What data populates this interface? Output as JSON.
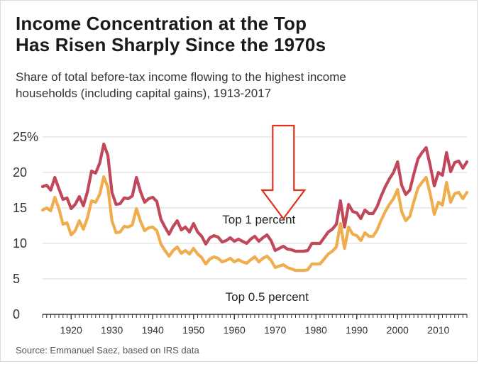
{
  "header": {
    "title_line1": "Income Concentration at the Top",
    "title_line2": "Has Risen Sharply Since the 1970s",
    "subtitle_line1": "Share of total before-tax income flowing to the highest income",
    "subtitle_line2": "households (including capital gains), 1913-2017"
  },
  "footer": {
    "source": "Source: Emmanuel Saez, based on IRS data"
  },
  "colors": {
    "top1": "#c0485a",
    "top05": "#f0ad4e",
    "arrow": "#e0301e",
    "grid": "#d9d9d9",
    "axis": "#333333"
  },
  "chart_data": {
    "type": "line",
    "title": "Income Concentration at the Top Has Risen Sharply Since the 1970s",
    "xlabel": "",
    "ylabel": "",
    "xlim": [
      1913,
      2017
    ],
    "ylim": [
      0,
      25
    ],
    "yticks": [
      0,
      5,
      10,
      15,
      20,
      25
    ],
    "ytick_labels": [
      "0",
      "5",
      "10",
      "15",
      "20",
      "25%"
    ],
    "xticks": [
      1920,
      1930,
      1940,
      1950,
      1960,
      1970,
      1980,
      1990,
      2000,
      2010
    ],
    "xtick_labels": [
      "1920",
      "1930",
      "1940",
      "1950",
      "1960",
      "1970",
      "1980",
      "1990",
      "2000",
      "2010"
    ],
    "grid": true,
    "annotation": "downward arrow above the curves near 1970-1974",
    "series": [
      {
        "name": "Top 1 percent",
        "label_text": "Top 1 percent",
        "label_year": 1966,
        "label_value": 12.8,
        "points": [
          [
            1913,
            18.0
          ],
          [
            1914,
            18.2
          ],
          [
            1915,
            17.5
          ],
          [
            1916,
            19.3
          ],
          [
            1917,
            17.7
          ],
          [
            1918,
            16.2
          ],
          [
            1919,
            16.4
          ],
          [
            1920,
            14.9
          ],
          [
            1921,
            15.5
          ],
          [
            1922,
            16.6
          ],
          [
            1923,
            15.3
          ],
          [
            1924,
            17.3
          ],
          [
            1925,
            20.2
          ],
          [
            1926,
            19.9
          ],
          [
            1927,
            21.3
          ],
          [
            1928,
            24.0
          ],
          [
            1929,
            22.4
          ],
          [
            1930,
            17.2
          ],
          [
            1931,
            15.5
          ],
          [
            1932,
            15.6
          ],
          [
            1933,
            16.4
          ],
          [
            1934,
            16.3
          ],
          [
            1935,
            16.7
          ],
          [
            1936,
            19.3
          ],
          [
            1937,
            17.3
          ],
          [
            1938,
            15.8
          ],
          [
            1939,
            16.3
          ],
          [
            1940,
            16.5
          ],
          [
            1941,
            15.9
          ],
          [
            1942,
            13.4
          ],
          [
            1943,
            12.3
          ],
          [
            1944,
            11.3
          ],
          [
            1945,
            12.4
          ],
          [
            1946,
            13.2
          ],
          [
            1947,
            11.9
          ],
          [
            1948,
            12.3
          ],
          [
            1949,
            11.6
          ],
          [
            1950,
            12.8
          ],
          [
            1951,
            11.6
          ],
          [
            1952,
            11.0
          ],
          [
            1953,
            9.9
          ],
          [
            1954,
            10.8
          ],
          [
            1955,
            11.1
          ],
          [
            1956,
            10.9
          ],
          [
            1957,
            10.2
          ],
          [
            1958,
            10.4
          ],
          [
            1959,
            10.8
          ],
          [
            1960,
            10.3
          ],
          [
            1961,
            10.6
          ],
          [
            1962,
            10.3
          ],
          [
            1963,
            10.0
          ],
          [
            1964,
            10.6
          ],
          [
            1965,
            11.0
          ],
          [
            1966,
            10.3
          ],
          [
            1967,
            10.8
          ],
          [
            1968,
            11.2
          ],
          [
            1969,
            10.4
          ],
          [
            1970,
            9.0
          ],
          [
            1971,
            9.3
          ],
          [
            1972,
            9.6
          ],
          [
            1973,
            9.2
          ],
          [
            1974,
            9.1
          ],
          [
            1975,
            8.9
          ],
          [
            1976,
            8.9
          ],
          [
            1977,
            8.9
          ],
          [
            1978,
            9.0
          ],
          [
            1979,
            10.0
          ],
          [
            1980,
            10.0
          ],
          [
            1981,
            10.0
          ],
          [
            1982,
            10.8
          ],
          [
            1983,
            11.6
          ],
          [
            1984,
            12.0
          ],
          [
            1985,
            12.7
          ],
          [
            1986,
            16.0
          ],
          [
            1987,
            12.3
          ],
          [
            1988,
            15.5
          ],
          [
            1989,
            14.5
          ],
          [
            1990,
            14.3
          ],
          [
            1991,
            13.5
          ],
          [
            1992,
            14.7
          ],
          [
            1993,
            14.2
          ],
          [
            1994,
            14.2
          ],
          [
            1995,
            15.2
          ],
          [
            1996,
            16.7
          ],
          [
            1997,
            18.0
          ],
          [
            1998,
            19.1
          ],
          [
            1999,
            20.0
          ],
          [
            2000,
            21.5
          ],
          [
            2001,
            18.2
          ],
          [
            2002,
            16.9
          ],
          [
            2003,
            17.5
          ],
          [
            2004,
            19.8
          ],
          [
            2005,
            21.9
          ],
          [
            2006,
            22.8
          ],
          [
            2007,
            23.5
          ],
          [
            2008,
            21.0
          ],
          [
            2009,
            18.1
          ],
          [
            2010,
            20.0
          ],
          [
            2011,
            19.6
          ],
          [
            2012,
            22.8
          ],
          [
            2013,
            20.1
          ],
          [
            2014,
            21.4
          ],
          [
            2015,
            21.6
          ],
          [
            2016,
            20.6
          ],
          [
            2017,
            21.5
          ]
        ]
      },
      {
        "name": "Top 0.5 percent",
        "label_text": "Top 0.5 percent",
        "label_year": 1968,
        "label_value": 1.9,
        "points": [
          [
            1913,
            14.7
          ],
          [
            1914,
            15.0
          ],
          [
            1915,
            14.6
          ],
          [
            1916,
            16.5
          ],
          [
            1917,
            14.9
          ],
          [
            1918,
            12.7
          ],
          [
            1919,
            12.9
          ],
          [
            1920,
            11.2
          ],
          [
            1921,
            11.8
          ],
          [
            1922,
            13.2
          ],
          [
            1923,
            12.0
          ],
          [
            1924,
            13.6
          ],
          [
            1925,
            16.0
          ],
          [
            1926,
            15.8
          ],
          [
            1927,
            16.9
          ],
          [
            1928,
            19.4
          ],
          [
            1929,
            17.9
          ],
          [
            1930,
            13.2
          ],
          [
            1931,
            11.5
          ],
          [
            1932,
            11.6
          ],
          [
            1933,
            12.4
          ],
          [
            1934,
            12.3
          ],
          [
            1935,
            12.6
          ],
          [
            1936,
            14.9
          ],
          [
            1937,
            13.1
          ],
          [
            1938,
            11.8
          ],
          [
            1939,
            12.2
          ],
          [
            1940,
            12.3
          ],
          [
            1941,
            11.8
          ],
          [
            1942,
            9.9
          ],
          [
            1943,
            9.0
          ],
          [
            1944,
            8.2
          ],
          [
            1945,
            9.0
          ],
          [
            1946,
            9.5
          ],
          [
            1947,
            8.6
          ],
          [
            1948,
            9.0
          ],
          [
            1949,
            8.5
          ],
          [
            1950,
            9.3
          ],
          [
            1951,
            8.5
          ],
          [
            1952,
            8.0
          ],
          [
            1953,
            7.1
          ],
          [
            1954,
            7.8
          ],
          [
            1955,
            8.1
          ],
          [
            1956,
            7.9
          ],
          [
            1957,
            7.4
          ],
          [
            1958,
            7.6
          ],
          [
            1959,
            7.9
          ],
          [
            1960,
            7.4
          ],
          [
            1961,
            7.7
          ],
          [
            1962,
            7.4
          ],
          [
            1963,
            7.2
          ],
          [
            1964,
            7.7
          ],
          [
            1965,
            8.1
          ],
          [
            1966,
            7.4
          ],
          [
            1967,
            7.9
          ],
          [
            1968,
            8.2
          ],
          [
            1969,
            7.6
          ],
          [
            1970,
            6.6
          ],
          [
            1971,
            6.8
          ],
          [
            1972,
            7.0
          ],
          [
            1973,
            6.6
          ],
          [
            1974,
            6.4
          ],
          [
            1975,
            6.2
          ],
          [
            1976,
            6.2
          ],
          [
            1977,
            6.2
          ],
          [
            1978,
            6.3
          ],
          [
            1979,
            7.1
          ],
          [
            1980,
            7.1
          ],
          [
            1981,
            7.1
          ],
          [
            1982,
            7.8
          ],
          [
            1983,
            8.5
          ],
          [
            1984,
            8.9
          ],
          [
            1985,
            9.5
          ],
          [
            1986,
            12.8
          ],
          [
            1987,
            9.3
          ],
          [
            1988,
            12.3
          ],
          [
            1989,
            11.3
          ],
          [
            1990,
            11.1
          ],
          [
            1991,
            10.4
          ],
          [
            1992,
            11.5
          ],
          [
            1993,
            11.0
          ],
          [
            1994,
            11.0
          ],
          [
            1995,
            11.9
          ],
          [
            1996,
            13.3
          ],
          [
            1997,
            14.5
          ],
          [
            1998,
            15.5
          ],
          [
            1999,
            16.3
          ],
          [
            2000,
            17.6
          ],
          [
            2001,
            14.5
          ],
          [
            2002,
            13.2
          ],
          [
            2003,
            13.8
          ],
          [
            2004,
            15.9
          ],
          [
            2005,
            17.8
          ],
          [
            2006,
            18.6
          ],
          [
            2007,
            19.3
          ],
          [
            2008,
            17.0
          ],
          [
            2009,
            14.1
          ],
          [
            2010,
            15.8
          ],
          [
            2011,
            15.4
          ],
          [
            2012,
            18.6
          ],
          [
            2013,
            15.8
          ],
          [
            2014,
            17.0
          ],
          [
            2015,
            17.2
          ],
          [
            2016,
            16.3
          ],
          [
            2017,
            17.2
          ]
        ]
      }
    ]
  }
}
